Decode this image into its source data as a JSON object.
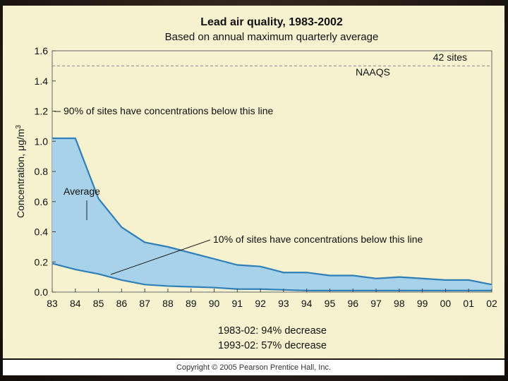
{
  "chart_data": {
    "type": "area",
    "title": "Lead air quality, 1983-2002",
    "subtitle": "Based on annual maximum quarterly average",
    "xlabel": "",
    "ylabel_prefix": "Concentration, ",
    "ylabel_mu": "μ",
    "ylabel_unit": "g/m",
    "ylabel_sup": "3",
    "x_tick_labels": [
      "83",
      "84",
      "85",
      "86",
      "87",
      "88",
      "89",
      "90",
      "91",
      "92",
      "93",
      "94",
      "95",
      "96",
      "97",
      "98",
      "99",
      "00",
      "01",
      "02"
    ],
    "y_tick_labels": [
      "0.0",
      "0.2",
      "0.4",
      "0.6",
      "0.8",
      "1.0",
      "1.2",
      "1.4",
      "1.6"
    ],
    "ylim": [
      0,
      1.6
    ],
    "years": [
      1983,
      1984,
      1985,
      1986,
      1987,
      1988,
      1989,
      1990,
      1991,
      1992,
      1993,
      1994,
      1995,
      1996,
      1997,
      1998,
      1999,
      2000,
      2001,
      2002
    ],
    "series": [
      {
        "name": "90% of sites",
        "values": [
          1.02,
          1.02,
          0.62,
          0.43,
          0.33,
          0.3,
          0.26,
          0.22,
          0.18,
          0.17,
          0.13,
          0.13,
          0.11,
          0.11,
          0.09,
          0.1,
          0.09,
          0.08,
          0.08,
          0.05
        ]
      },
      {
        "name": "10% of sites",
        "values": [
          0.19,
          0.15,
          0.12,
          0.08,
          0.05,
          0.04,
          0.035,
          0.03,
          0.02,
          0.02,
          0.015,
          0.01,
          0.01,
          0.01,
          0.01,
          0.01,
          0.01,
          0.01,
          0.01,
          0.01
        ]
      }
    ],
    "reference_line": {
      "label": "NAAQS",
      "value": 1.5
    },
    "annotations": {
      "sites": "42 sites",
      "upper": "90% of sites have concentrations below this line",
      "average": "Average",
      "lower": "10% of sites have concentrations below this line",
      "decrease_1": "1983-02: 94% decrease",
      "decrease_2": "1993-02: 57% decrease"
    },
    "colors": {
      "fill": "#a8d1ea",
      "line": "#2f7fb9",
      "background": "#f6f1cf"
    }
  },
  "copyright": "Copyright © 2005 Pearson Prentice Hall, Inc."
}
